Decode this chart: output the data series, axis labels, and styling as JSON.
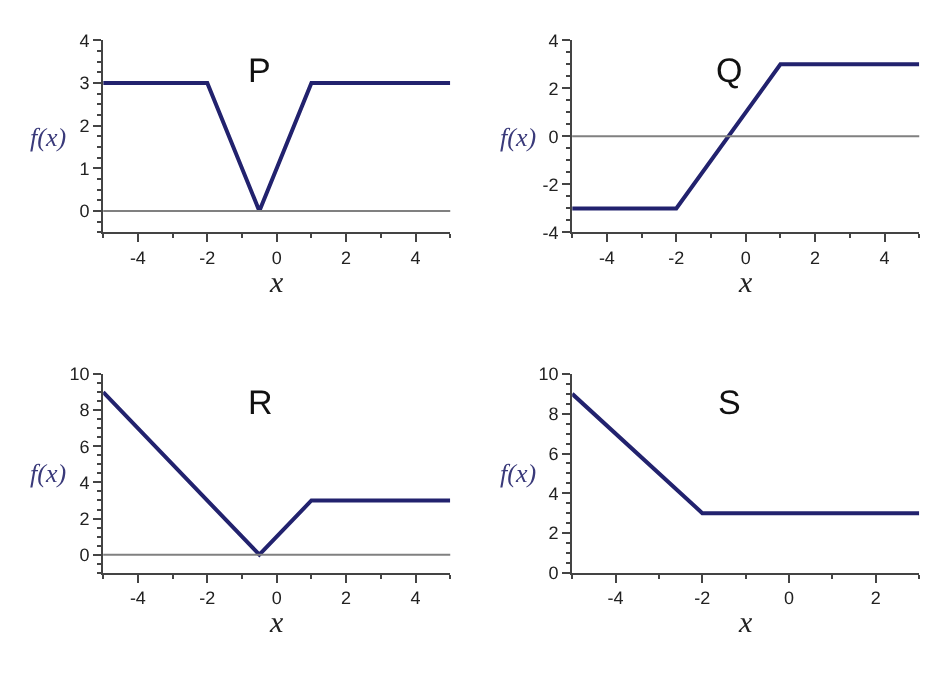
{
  "chart_data": [
    {
      "type": "line",
      "title": "P",
      "xlabel": "x",
      "ylabel": "f(x)",
      "x": [
        -5,
        -2,
        -0.5,
        1,
        5
      ],
      "series": [
        {
          "color": "#22226e",
          "values": [
            3,
            3,
            0,
            3,
            3
          ]
        }
      ],
      "xlim": [
        -5,
        5
      ],
      "ylim": [
        -0.5,
        4
      ],
      "xticks": [
        -4,
        -2,
        0,
        2,
        4
      ],
      "yticks": [
        0,
        1,
        2,
        3,
        4
      ],
      "ref_lines": [
        {
          "axis": "y",
          "value": 0,
          "color": "#808080"
        }
      ]
    },
    {
      "type": "line",
      "title": "Q",
      "xlabel": "x",
      "ylabel": "f(x)",
      "x": [
        -5,
        -2,
        1,
        5
      ],
      "series": [
        {
          "color": "#22226e",
          "values": [
            -3,
            -3,
            3,
            3
          ]
        }
      ],
      "xlim": [
        -5,
        5
      ],
      "ylim": [
        -4,
        4
      ],
      "xticks": [
        -4,
        -2,
        0,
        2,
        4
      ],
      "yticks": [
        -4,
        -2,
        0,
        2,
        4
      ],
      "ref_lines": [
        {
          "axis": "y",
          "value": 0,
          "color": "#808080"
        }
      ]
    },
    {
      "type": "line",
      "title": "R",
      "xlabel": "x",
      "ylabel": "f(x)",
      "x": [
        -5,
        -0.5,
        1,
        5
      ],
      "series": [
        {
          "color": "#22226e",
          "values": [
            9,
            0,
            3,
            3
          ]
        }
      ],
      "xlim": [
        -5,
        5
      ],
      "ylim": [
        -1,
        10
      ],
      "xticks": [
        -4,
        -2,
        0,
        2,
        4
      ],
      "yticks": [
        0,
        2,
        4,
        6,
        8,
        10
      ],
      "ref_lines": [
        {
          "axis": "y",
          "value": 0,
          "color": "#808080"
        }
      ]
    },
    {
      "type": "line",
      "title": "S",
      "xlabel": "x",
      "ylabel": "f(x)",
      "x": [
        -5,
        -2,
        3
      ],
      "series": [
        {
          "color": "#22226e",
          "values": [
            9,
            3,
            3
          ]
        }
      ],
      "xlim": [
        -5,
        3
      ],
      "ylim": [
        0,
        10
      ],
      "xticks": [
        -4,
        -2,
        0,
        2
      ],
      "yticks": [
        0,
        2,
        4,
        6,
        8,
        10
      ]
    }
  ]
}
